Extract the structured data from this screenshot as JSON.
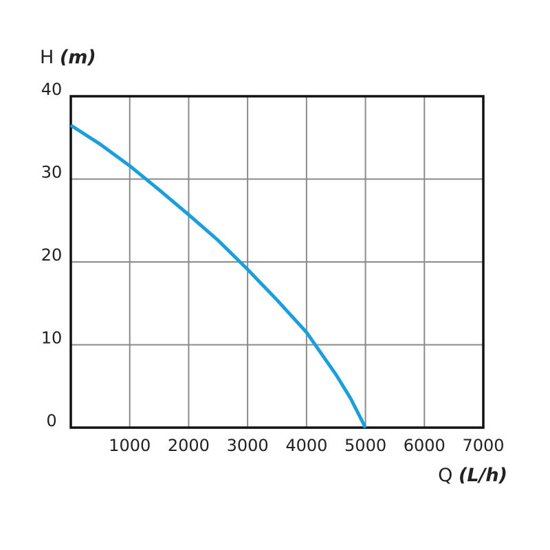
{
  "chart_data": {
    "type": "line",
    "y_label": {
      "symbol": "H",
      "unit": "(m)"
    },
    "x_label": {
      "symbol": "Q",
      "unit": "(L/h)"
    },
    "x": [
      0,
      500,
      1000,
      1500,
      2000,
      2500,
      3000,
      3500,
      4000,
      4500,
      4750,
      5000
    ],
    "values": [
      36.5,
      34.2,
      31.6,
      28.7,
      25.7,
      22.6,
      19.1,
      15.4,
      11.5,
      6.4,
      3.5,
      0
    ],
    "color": "#1a9fdc",
    "xlim": [
      0,
      7000
    ],
    "xticks": [
      1000,
      2000,
      3000,
      4000,
      5000,
      6000,
      7000
    ],
    "ylim": [
      0,
      40
    ],
    "yticks": [
      0,
      10,
      20,
      30,
      40
    ],
    "grid": true
  }
}
